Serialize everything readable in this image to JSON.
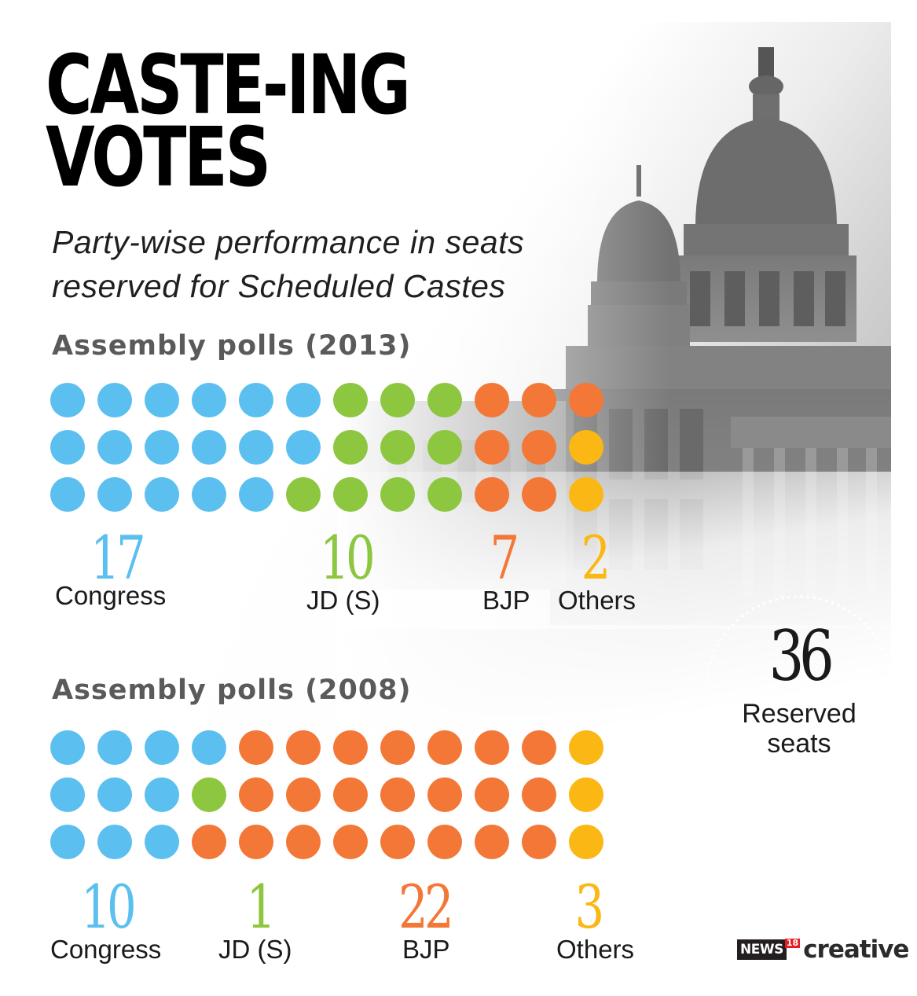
{
  "title": {
    "line1": "CASTE-ING",
    "line2": "VOTES"
  },
  "subtitle": {
    "line1": "Party-wise performance in seats",
    "line2": "reserved for Scheduled Castes"
  },
  "colors": {
    "congress": "#5bbfef",
    "jds": "#8dc63f",
    "bjp": "#f37737",
    "others": "#fbb714"
  },
  "badge": {
    "value": "36",
    "label_line1": "Reserved",
    "label_line2": "seats"
  },
  "logo": {
    "news": "NEWS",
    "number": "18",
    "creative": "creative"
  },
  "chart_data": [
    {
      "type": "waffle",
      "title": "Assembly polls (2013)",
      "rows": 3,
      "columns": 12,
      "series": [
        {
          "name": "Congress",
          "value": 17,
          "value_label": "17",
          "color": "#5bbfef"
        },
        {
          "name": "JD (S)",
          "value": 10,
          "value_label": "10",
          "color": "#8dc63f"
        },
        {
          "name": "BJP",
          "value": 7,
          "value_label": "7",
          "color": "#f37737"
        },
        {
          "name": "Others",
          "value": 2,
          "value_label": "2",
          "color": "#fbb714"
        }
      ]
    },
    {
      "type": "waffle",
      "title": "Assembly polls (2008)",
      "rows": 3,
      "columns": 12,
      "series": [
        {
          "name": "Congress",
          "value": 10,
          "value_label": "10",
          "color": "#5bbfef"
        },
        {
          "name": "JD (S)",
          "value": 1,
          "value_label": "1",
          "color": "#8dc63f"
        },
        {
          "name": "BJP",
          "value": 22,
          "value_label": "22",
          "color": "#f37737"
        },
        {
          "name": "Others",
          "value": 3,
          "value_label": "3",
          "color": "#fbb714"
        }
      ]
    }
  ]
}
